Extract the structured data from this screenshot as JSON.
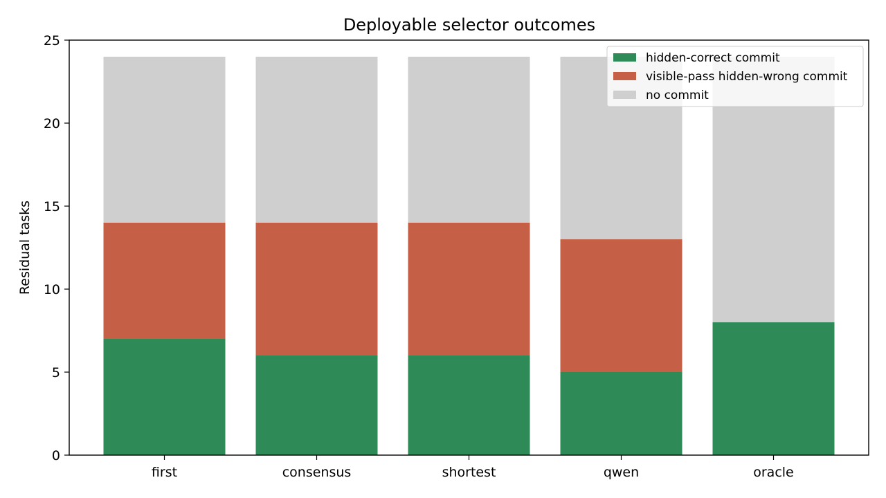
{
  "chart_data": {
    "type": "bar",
    "stacked": true,
    "title": "Deployable selector outcomes",
    "xlabel": "",
    "ylabel": "Residual tasks",
    "categories": [
      "first",
      "consensus",
      "shortest",
      "qwen",
      "oracle"
    ],
    "series": [
      {
        "name": "hidden-correct commit",
        "values": [
          7,
          6,
          6,
          5,
          8
        ],
        "color": "#2e8b57"
      },
      {
        "name": "visible-pass hidden-wrong commit",
        "values": [
          7,
          8,
          8,
          8,
          0
        ],
        "color": "#c55f45"
      },
      {
        "name": "no commit",
        "values": [
          10,
          10,
          10,
          11,
          16
        ],
        "color": "#cfcfcf"
      }
    ],
    "ylim": [
      0,
      25
    ],
    "yticks": [
      0,
      5,
      10,
      15,
      20,
      25
    ],
    "grid": false,
    "legend_position": "top-right"
  }
}
